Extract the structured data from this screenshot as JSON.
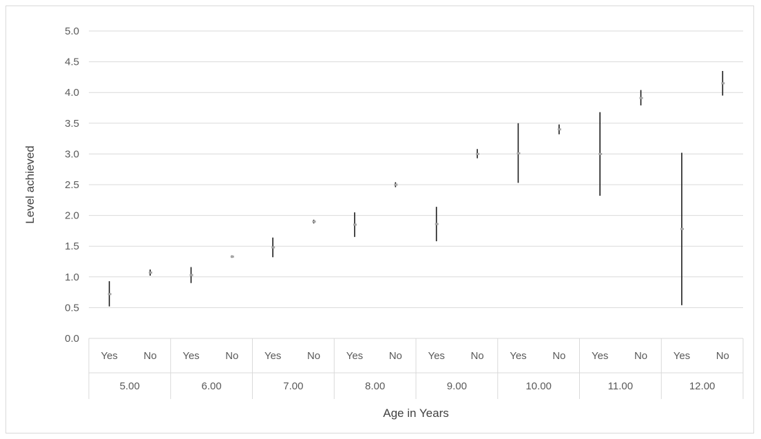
{
  "chart_data": {
    "type": "error-bar",
    "title": "",
    "xlabel": "Age in Years",
    "ylabel": "Level achieved",
    "ylim": [
      0,
      5
    ],
    "yticks": [
      "0.0",
      "0.5",
      "1.0",
      "1.5",
      "2.0",
      "2.5",
      "3.0",
      "3.5",
      "4.0",
      "4.5",
      "5.0"
    ],
    "grid": true,
    "legend": "none",
    "colors": {
      "gridline": "#d9d9d9",
      "error_bar": "#1a1a1a",
      "marker": "#a6a6a6",
      "text": "#595959"
    },
    "groups": [
      {
        "label": "5.00",
        "categories": [
          {
            "label": "Yes",
            "mean": 0.72,
            "low": 0.52,
            "high": 0.93
          },
          {
            "label": "No",
            "mean": 1.07,
            "low": 1.02,
            "high": 1.12
          }
        ]
      },
      {
        "label": "6.00",
        "categories": [
          {
            "label": "Yes",
            "mean": 1.03,
            "low": 0.9,
            "high": 1.16
          },
          {
            "label": "No",
            "mean": 1.33,
            "low": 1.31,
            "high": 1.35
          }
        ]
      },
      {
        "label": "7.00",
        "categories": [
          {
            "label": "Yes",
            "mean": 1.48,
            "low": 1.32,
            "high": 1.64
          },
          {
            "label": "No",
            "mean": 1.9,
            "low": 1.87,
            "high": 1.93
          }
        ]
      },
      {
        "label": "8.00",
        "categories": [
          {
            "label": "Yes",
            "mean": 1.85,
            "low": 1.65,
            "high": 2.05
          },
          {
            "label": "No",
            "mean": 2.5,
            "low": 2.46,
            "high": 2.54
          }
        ]
      },
      {
        "label": "9.00",
        "categories": [
          {
            "label": "Yes",
            "mean": 1.86,
            "low": 1.58,
            "high": 2.14
          },
          {
            "label": "No",
            "mean": 3.0,
            "low": 2.93,
            "high": 3.08
          }
        ]
      },
      {
        "label": "10.00",
        "categories": [
          {
            "label": "Yes",
            "mean": 3.01,
            "low": 2.53,
            "high": 3.5
          },
          {
            "label": "No",
            "mean": 3.4,
            "low": 3.32,
            "high": 3.48
          }
        ]
      },
      {
        "label": "11.00",
        "categories": [
          {
            "label": "Yes",
            "mean": 3.0,
            "low": 2.32,
            "high": 3.68
          },
          {
            "label": "No",
            "mean": 3.91,
            "low": 3.79,
            "high": 4.04
          }
        ]
      },
      {
        "label": "12.00",
        "categories": [
          {
            "label": "Yes",
            "mean": 1.78,
            "low": 0.54,
            "high": 3.02
          },
          {
            "label": "No",
            "mean": 4.15,
            "low": 3.95,
            "high": 4.35
          }
        ]
      }
    ]
  }
}
